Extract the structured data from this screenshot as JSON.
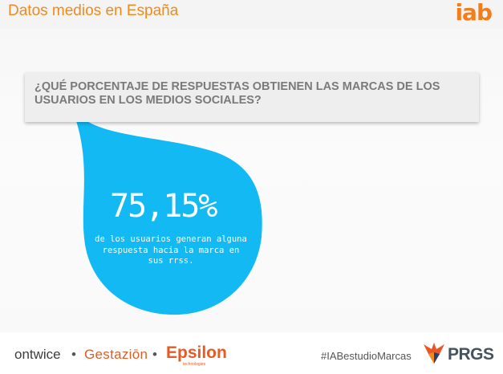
{
  "header": {
    "title": "Datos medios en España",
    "logo_text": "iab"
  },
  "question": {
    "text": "¿QUÉ PORCENTAJE DE RESPUESTAS OBTIENEN LAS MARCAS DE LOS USUARIOS EN LOS MEDIOS SOCIALES?"
  },
  "stat": {
    "value": "75,15%",
    "caption": "de los usuarios generan alguna respuesta hacia la marca en sus rrss."
  },
  "footer": {
    "brand_1": "ontwice",
    "separator": "•",
    "brand_2": "Gestaziōn",
    "brand_3": "Epsilon",
    "brand_3_sub": "technologies",
    "hashtag": "#IABestudioMarcas",
    "brand_4": "PRGS"
  },
  "colors": {
    "header_title": "#f08a1c",
    "drop": "#12b9f3",
    "question_bg": "#eeeeee",
    "question_text": "#7a7a7a"
  },
  "icons": [
    "iab-logo",
    "water-drop-shape",
    "prgs-fox-icon"
  ]
}
